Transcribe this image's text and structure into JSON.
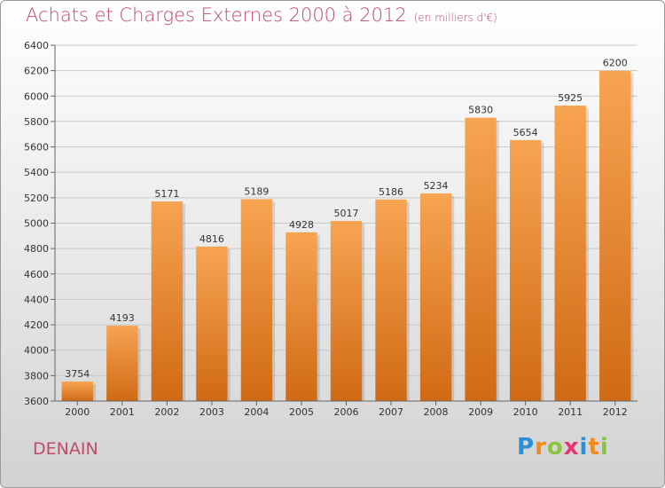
{
  "title": "Achats et Charges Externes 2000 à 2012",
  "subtitle": "(en milliers d'€)",
  "commune": "DENAIN",
  "logo": {
    "text": "Proxiti",
    "letters": [
      {
        "ch": "P",
        "color": "#2a8fd6"
      },
      {
        "ch": "r",
        "color": "#f08a1c"
      },
      {
        "ch": "o",
        "color": "#8bc53f"
      },
      {
        "ch": "x",
        "color": "#e8366f"
      },
      {
        "ch": "i",
        "color": "#2a8fd6"
      },
      {
        "ch": "t",
        "color": "#f08a1c"
      },
      {
        "ch": "i",
        "color": "#8bc53f"
      }
    ]
  },
  "colors": {
    "title": "#c24a6a",
    "bar_top": "#f7a452",
    "bar_bottom": "#d06a14",
    "grid": "#c8c8c8",
    "axis_text": "#333333"
  },
  "chart_data": {
    "type": "bar",
    "title": "Achats et Charges Externes 2000 à 2012",
    "subtitle": "(en milliers d'€)",
    "categories": [
      "2000",
      "2001",
      "2002",
      "2003",
      "2004",
      "2005",
      "2006",
      "2007",
      "2008",
      "2009",
      "2010",
      "2011",
      "2012"
    ],
    "values": [
      3754,
      4193,
      5171,
      4816,
      5189,
      4928,
      5017,
      5186,
      5234,
      5830,
      5654,
      5925,
      6200
    ],
    "xlabel": "",
    "ylabel": "",
    "ylim": [
      3600,
      6400
    ],
    "yticks": [
      3600,
      3800,
      4000,
      4200,
      4400,
      4600,
      4800,
      5000,
      5200,
      5400,
      5600,
      5800,
      6000,
      6200,
      6400
    ],
    "grid": true
  }
}
